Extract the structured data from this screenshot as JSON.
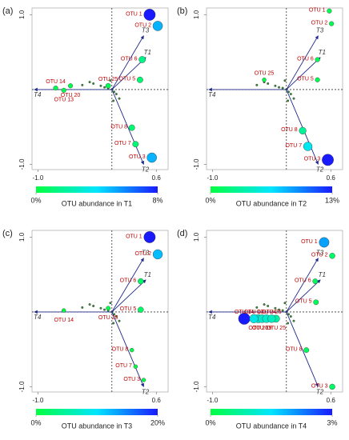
{
  "chart_data": [
    {
      "type": "scatter",
      "panel": "(a)",
      "xlim": [
        -1.08,
        0.76
      ],
      "ylim": [
        -1.07,
        1.09
      ],
      "xticks": [
        {
          "value": -1.0,
          "label": "-1.0"
        },
        0.6
      ],
      "yticks": [
        {
          "value": -1.0,
          "label": "-1.0"
        },
        {
          "value": 1.0,
          "label": "1.0"
        }
      ],
      "vectors": [
        {
          "name": "T1",
          "x": 0.46,
          "y": 0.43
        },
        {
          "name": "T2",
          "x": 0.43,
          "y": -1.0
        },
        {
          "name": "T3",
          "x": 0.43,
          "y": 0.72
        },
        {
          "name": "T4",
          "x": -1.05,
          "y": 0
        }
      ],
      "points": {
        "x": [
          -0.25,
          -0.15,
          -0.1,
          -0.05,
          0,
          0.03,
          0.06,
          0.1,
          -0.3,
          -0.4,
          0.02,
          -0.02
        ],
        "y": [
          0.08,
          0.05,
          0.03,
          0.02,
          0,
          -0.03,
          -0.06,
          -0.12,
          0.1,
          0.06,
          -0.15,
          0.12
        ]
      },
      "otus": [
        {
          "name": "OTU 1",
          "x": 0.51,
          "y": 1.0,
          "value": 8
        },
        {
          "name": "OTU 2",
          "x": 0.62,
          "y": 0.85,
          "value": 5
        },
        {
          "name": "OTU 6",
          "x": 0.41,
          "y": 0.4,
          "value": 1.5
        },
        {
          "name": "OTU 5",
          "x": 0.38,
          "y": 0.13,
          "value": 1
        },
        {
          "name": "OTU 25",
          "x": -0.05,
          "y": 0.05,
          "value": 0.5
        },
        {
          "name": "OTU 20",
          "x": -0.56,
          "y": 0.05,
          "value": 0.3
        },
        {
          "name": "OTU 14",
          "x": -0.76,
          "y": 0.02,
          "value": 0.3
        },
        {
          "name": "OTU 13",
          "x": -0.65,
          "y": -0.01,
          "value": 0.3
        },
        {
          "name": "OTU 8",
          "x": 0.27,
          "y": -0.51,
          "value": 1
        },
        {
          "name": "OTU 7",
          "x": 0.32,
          "y": -0.73,
          "value": 1
        },
        {
          "name": "OTU 3",
          "x": 0.54,
          "y": -0.91,
          "value": 5
        }
      ],
      "colorbar": {
        "label": "OTU abundance in T1",
        "lim": [
          0,
          8
        ],
        "ticks": [
          {
            "value": 0,
            "label": "0%"
          },
          {
            "value": 8,
            "label": "8%"
          }
        ],
        "colors": [
          "#00ff40",
          "#00e5ff",
          "#1a1aff"
        ]
      }
    },
    {
      "type": "scatter",
      "panel": "(b)",
      "xlim": [
        -1.08,
        0.76
      ],
      "ylim": [
        -1.07,
        1.09
      ],
      "xticks": [
        {
          "value": -1.0,
          "label": "-1.0"
        },
        0.6
      ],
      "yticks": [
        {
          "value": -1.0,
          "label": "-1.0"
        },
        {
          "value": 1.0,
          "label": "1.0"
        }
      ],
      "vectors": [
        {
          "name": "T1",
          "x": 0.46,
          "y": 0.43
        },
        {
          "name": "T2",
          "x": 0.43,
          "y": -1.0
        },
        {
          "name": "T3",
          "x": 0.43,
          "y": 0.72
        },
        {
          "name": "T4",
          "x": -1.05,
          "y": 0
        }
      ],
      "points": {
        "x": [
          -0.25,
          -0.15,
          -0.1,
          -0.05,
          0,
          0.03,
          0.06,
          0.1,
          -0.3,
          -0.4,
          0.02,
          -0.02
        ],
        "y": [
          0.08,
          0.05,
          0.03,
          0.02,
          0,
          -0.03,
          -0.06,
          -0.12,
          0.1,
          0.06,
          -0.15,
          0.12
        ]
      },
      "otus": [
        {
          "name": "OTU 1",
          "x": 0.58,
          "y": 1.05,
          "value": 0.5
        },
        {
          "name": "OTU 2",
          "x": 0.61,
          "y": 0.88,
          "value": 0.5
        },
        {
          "name": "OTU 6",
          "x": 0.42,
          "y": 0.4,
          "value": 0.5
        },
        {
          "name": "OTU 5",
          "x": 0.42,
          "y": 0.13,
          "value": 0.5
        },
        {
          "name": "OTU 25",
          "x": -0.3,
          "y": 0.13,
          "value": 0.2
        },
        {
          "name": "OTU 8",
          "x": 0.22,
          "y": -0.55,
          "value": 3
        },
        {
          "name": "OTU 7",
          "x": 0.29,
          "y": -0.76,
          "value": 6
        },
        {
          "name": "OTU 3",
          "x": 0.56,
          "y": -0.94,
          "value": 13
        }
      ],
      "colorbar": {
        "label": "OTU abundance in T2",
        "lim": [
          0,
          13
        ],
        "ticks": [
          {
            "value": 0,
            "label": "0%"
          },
          {
            "value": 13,
            "label": "13%"
          }
        ],
        "colors": [
          "#00ff40",
          "#00e5ff",
          "#1a1aff"
        ]
      }
    },
    {
      "type": "scatter",
      "panel": "(c)",
      "xlim": [
        -1.08,
        0.76
      ],
      "ylim": [
        -1.07,
        1.09
      ],
      "xticks": [
        {
          "value": -1.0,
          "label": "-1.0"
        },
        0.6
      ],
      "yticks": [
        {
          "value": -1.0,
          "label": "-1.0"
        },
        {
          "value": 1.0,
          "label": "1.0"
        }
      ],
      "vectors": [
        {
          "name": "T1",
          "x": 0.46,
          "y": 0.43
        },
        {
          "name": "T2",
          "x": 0.43,
          "y": -1.0
        },
        {
          "name": "T3",
          "x": 0.43,
          "y": 0.72
        },
        {
          "name": "T4",
          "x": -1.05,
          "y": 0
        }
      ],
      "points": {
        "x": [
          -0.25,
          -0.15,
          -0.1,
          -0.05,
          0,
          0.03,
          0.06,
          0.1,
          -0.3,
          -0.4,
          0.02,
          -0.02
        ],
        "y": [
          0.08,
          0.05,
          0.03,
          0.02,
          0,
          -0.03,
          -0.06,
          -0.12,
          0.1,
          0.06,
          -0.15,
          0.12
        ]
      },
      "otus": [
        {
          "name": "OTU 1",
          "x": 0.51,
          "y": 1.0,
          "value": 20
        },
        {
          "name": "OTU 2",
          "x": 0.62,
          "y": 0.77,
          "value": 12
        },
        {
          "name": "OTU 6",
          "x": 0.39,
          "y": 0.41,
          "value": 2
        },
        {
          "name": "OTU 25",
          "x": -0.05,
          "y": 0.05,
          "value": 0.5
        },
        {
          "name": "OTU 5",
          "x": 0.39,
          "y": 0.03,
          "value": 2
        },
        {
          "name": "OTU 14",
          "x": -0.65,
          "y": 0.02,
          "value": 0.3
        },
        {
          "name": "OTU 8",
          "x": 0.27,
          "y": -0.51,
          "value": 0.3
        },
        {
          "name": "OTU 7",
          "x": 0.32,
          "y": -0.73,
          "value": 0.3
        },
        {
          "name": "OTU 3",
          "x": 0.43,
          "y": -0.91,
          "value": 0.3
        }
      ],
      "colorbar": {
        "label": "OTU abundance in T3",
        "lim": [
          0,
          20
        ],
        "ticks": [
          {
            "value": 0,
            "label": "0%"
          },
          {
            "value": 20,
            "label": "20%"
          }
        ],
        "colors": [
          "#00ff40",
          "#00e5ff",
          "#1a1aff"
        ]
      }
    },
    {
      "type": "scatter",
      "panel": "(d)",
      "xlim": [
        -1.08,
        0.76
      ],
      "ylim": [
        -1.07,
        1.09
      ],
      "xticks": [
        {
          "value": -1.0,
          "label": "-1.0"
        },
        0.6
      ],
      "yticks": [
        {
          "value": -1.0,
          "label": "-1.0"
        },
        {
          "value": 1.0,
          "label": "1.0"
        }
      ],
      "vectors": [
        {
          "name": "T1",
          "x": 0.46,
          "y": 0.43
        },
        {
          "name": "T2",
          "x": 0.43,
          "y": -1.0
        },
        {
          "name": "T3",
          "x": 0.43,
          "y": 0.72
        },
        {
          "name": "T4",
          "x": -1.05,
          "y": 0
        }
      ],
      "points": {
        "x": [
          -0.25,
          -0.15,
          -0.1,
          -0.05,
          0,
          0.03,
          0.06,
          0.1,
          -0.3,
          -0.4,
          0.02,
          -0.02
        ],
        "y": [
          0.08,
          0.05,
          0.03,
          0.02,
          0,
          -0.03,
          -0.06,
          -0.12,
          0.1,
          0.06,
          -0.15,
          0.12
        ]
      },
      "otus": [
        {
          "name": "OTU 1",
          "x": 0.51,
          "y": 0.93,
          "value": 2
        },
        {
          "name": "OTU 2",
          "x": 0.62,
          "y": 0.75,
          "value": 0.3
        },
        {
          "name": "OTU 6",
          "x": 0.39,
          "y": 0.41,
          "value": 0.2
        },
        {
          "name": "OTU 5",
          "x": 0.4,
          "y": 0.13,
          "value": 0.2
        },
        {
          "name": "OTU 14",
          "x": -0.57,
          "y": -0.09,
          "value": 3
        },
        {
          "name": "OTU 20",
          "x": -0.38,
          "y": -0.09,
          "value": 1.2
        },
        {
          "name": "OTU 13",
          "x": -0.44,
          "y": -0.09,
          "value": 1.3
        },
        {
          "name": "OTU 19",
          "x": -0.33,
          "y": -0.09,
          "value": 1.1
        },
        {
          "name": "OTU 24",
          "x": -0.27,
          "y": -0.09,
          "value": 1.1
        },
        {
          "name": "OTU 25",
          "x": -0.14,
          "y": -0.09,
          "value": 0.8
        },
        {
          "name": "OTU 26",
          "x": -0.2,
          "y": -0.09,
          "value": 1
        },
        {
          "name": "OTU 8",
          "x": 0.27,
          "y": -0.51,
          "value": 0.2
        },
        {
          "name": "OTU 3",
          "x": 0.62,
          "y": -1.0,
          "value": 0.3
        }
      ],
      "colorbar": {
        "label": "OTU abundance in T4",
        "lim": [
          0,
          3
        ],
        "ticks": [
          {
            "value": 0,
            "label": "0%"
          },
          {
            "value": 3,
            "label": "3%"
          }
        ],
        "colors": [
          "#00ff40",
          "#00e5ff",
          "#1a1aff"
        ]
      }
    }
  ]
}
